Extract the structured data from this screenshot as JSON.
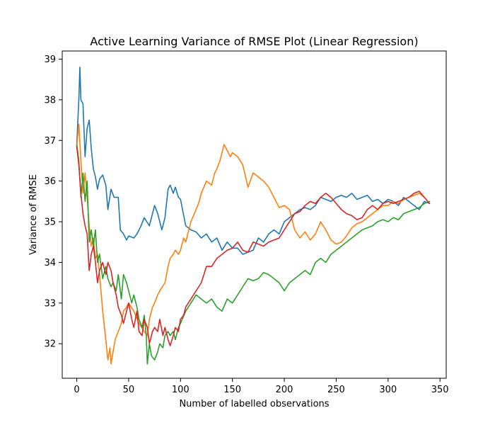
{
  "chart_data": {
    "type": "line",
    "title": "Active Learning Variance of RMSE Plot (Linear Regression)",
    "xlabel": "Number of labelled observations",
    "ylabel": "Variance of RMSE",
    "xlim": [
      -14,
      356
    ],
    "ylim": [
      31.15,
      39.2
    ],
    "xticks": [
      0,
      50,
      100,
      150,
      200,
      250,
      300,
      350
    ],
    "yticks": [
      32,
      33,
      34,
      35,
      36,
      37,
      38,
      39
    ],
    "grid": false,
    "legend": "none",
    "series": [
      {
        "color": "#1f77b4",
        "x": [
          0,
          2,
          3,
          4,
          6,
          8,
          10,
          12,
          14,
          16,
          18,
          20,
          22,
          25,
          28,
          30,
          33,
          36,
          40,
          42,
          45,
          48,
          50,
          55,
          58,
          62,
          65,
          70,
          75,
          78,
          82,
          85,
          88,
          90,
          93,
          95,
          98,
          100,
          105,
          110,
          115,
          120,
          125,
          130,
          135,
          140,
          145,
          150,
          155,
          160,
          165,
          170,
          175,
          180,
          185,
          190,
          195,
          200,
          205,
          210,
          215,
          220,
          225,
          230,
          235,
          240,
          245,
          250,
          255,
          260,
          265,
          270,
          275,
          280,
          285,
          290,
          295,
          300,
          305,
          310,
          315,
          320,
          325,
          330,
          335,
          340
        ],
        "y": [
          36.9,
          38.0,
          38.8,
          38.0,
          37.9,
          36.6,
          37.3,
          37.5,
          36.8,
          36.3,
          36.1,
          35.8,
          36.05,
          36.15,
          35.9,
          35.3,
          35.8,
          35.6,
          35.6,
          34.8,
          34.7,
          34.55,
          34.65,
          34.6,
          34.7,
          34.9,
          35.1,
          34.9,
          35.4,
          35.2,
          34.8,
          35.1,
          35.8,
          35.9,
          35.7,
          35.85,
          35.6,
          35.55,
          34.9,
          34.8,
          34.75,
          34.6,
          34.7,
          34.5,
          34.6,
          34.3,
          34.5,
          34.35,
          34.35,
          34.2,
          34.25,
          34.3,
          34.6,
          34.5,
          34.7,
          34.8,
          34.7,
          35.0,
          35.1,
          35.2,
          35.3,
          35.35,
          35.3,
          35.4,
          35.6,
          35.55,
          35.5,
          35.6,
          35.65,
          35.6,
          35.7,
          35.55,
          35.6,
          35.65,
          35.5,
          35.55,
          35.45,
          35.55,
          35.5,
          35.4,
          35.6,
          35.5,
          35.4,
          35.3,
          35.5,
          35.45
        ]
      },
      {
        "color": "#ff7f0e",
        "x": [
          0,
          2,
          4,
          6,
          8,
          10,
          12,
          14,
          16,
          18,
          20,
          22,
          25,
          28,
          30,
          32,
          33,
          35,
          37,
          40,
          43,
          45,
          48,
          50,
          55,
          60,
          65,
          68,
          70,
          73,
          75,
          78,
          80,
          85,
          88,
          90,
          93,
          95,
          98,
          100,
          103,
          105,
          110,
          115,
          118,
          120,
          125,
          130,
          133,
          135,
          138,
          140,
          142,
          145,
          148,
          150,
          155,
          160,
          165,
          170,
          175,
          180,
          185,
          190,
          195,
          200,
          205,
          210,
          215,
          220,
          225,
          230,
          235,
          240,
          245,
          250,
          255,
          260,
          265,
          270,
          275,
          280,
          285,
          290,
          295,
          300,
          305,
          310,
          315,
          320,
          325,
          330,
          335,
          340
        ],
        "y": [
          36.85,
          37.4,
          36.5,
          35.7,
          36.2,
          35.6,
          34.9,
          34.4,
          34.6,
          34.1,
          34.2,
          33.7,
          32.8,
          32.1,
          31.6,
          31.9,
          31.5,
          31.8,
          32.1,
          32.3,
          32.5,
          32.8,
          32.9,
          33.0,
          32.8,
          32.5,
          32.3,
          32.2,
          32.6,
          32.9,
          33.0,
          33.2,
          33.3,
          33.5,
          33.9,
          34.1,
          34.2,
          34.3,
          34.2,
          34.3,
          34.6,
          34.5,
          35.0,
          35.3,
          35.5,
          35.7,
          36.0,
          35.9,
          36.2,
          36.3,
          36.5,
          36.7,
          36.9,
          36.75,
          36.6,
          36.7,
          36.6,
          36.4,
          35.85,
          36.2,
          36.1,
          36.0,
          35.85,
          35.6,
          35.35,
          35.4,
          35.3,
          34.8,
          34.6,
          34.75,
          34.55,
          34.7,
          35.0,
          34.8,
          34.55,
          34.45,
          34.5,
          34.65,
          34.85,
          34.95,
          35.0,
          35.1,
          35.2,
          35.3,
          35.4,
          35.4,
          35.5,
          35.45,
          35.55,
          35.6,
          35.65,
          35.7,
          35.6,
          35.45
        ]
      },
      {
        "color": "#2ca02c",
        "x": [
          0,
          2,
          4,
          6,
          8,
          10,
          12,
          14,
          16,
          18,
          20,
          22,
          25,
          28,
          30,
          33,
          35,
          38,
          40,
          43,
          45,
          48,
          50,
          53,
          55,
          58,
          60,
          63,
          65,
          67,
          68,
          70,
          72,
          75,
          78,
          80,
          83,
          85,
          88,
          90,
          93,
          95,
          98,
          100,
          105,
          110,
          115,
          120,
          125,
          130,
          135,
          140,
          145,
          150,
          155,
          160,
          165,
          170,
          175,
          180,
          185,
          190,
          195,
          200,
          205,
          210,
          215,
          220,
          225,
          230,
          235,
          240,
          245,
          250,
          255,
          260,
          265,
          270,
          275,
          280,
          285,
          290,
          295,
          300,
          305,
          310,
          315,
          320,
          325,
          330,
          335,
          340
        ],
        "y": [
          36.9,
          36.5,
          35.6,
          36.2,
          35.5,
          36.0,
          34.5,
          34.8,
          34.4,
          34.8,
          34.0,
          34.2,
          33.6,
          33.9,
          33.6,
          33.4,
          33.5,
          33.3,
          33.7,
          33.1,
          33.7,
          33.5,
          33.3,
          33.0,
          33.2,
          32.9,
          32.6,
          32.4,
          32.7,
          32.2,
          31.5,
          32.0,
          31.7,
          31.6,
          31.8,
          32.0,
          31.9,
          32.2,
          32.3,
          32.2,
          32.3,
          32.1,
          32.4,
          32.5,
          32.8,
          33.0,
          33.2,
          33.1,
          33.0,
          33.1,
          32.9,
          32.8,
          33.1,
          33.0,
          33.2,
          33.4,
          33.6,
          33.55,
          33.6,
          33.75,
          33.7,
          33.6,
          33.5,
          33.3,
          33.5,
          33.6,
          33.7,
          33.8,
          33.7,
          34.0,
          34.1,
          34.0,
          34.2,
          34.3,
          34.4,
          34.5,
          34.6,
          34.7,
          34.8,
          34.85,
          34.9,
          35.0,
          35.05,
          35.0,
          35.1,
          35.05,
          35.2,
          35.25,
          35.3,
          35.35,
          35.45,
          35.5
        ]
      },
      {
        "color": "#d62728",
        "x": [
          0,
          2,
          4,
          6,
          8,
          10,
          12,
          14,
          16,
          18,
          20,
          22,
          25,
          28,
          30,
          33,
          35,
          38,
          40,
          43,
          45,
          48,
          50,
          53,
          55,
          58,
          60,
          63,
          65,
          68,
          70,
          73,
          75,
          78,
          80,
          83,
          85,
          88,
          90,
          93,
          95,
          98,
          100,
          103,
          105,
          110,
          115,
          120,
          125,
          130,
          135,
          140,
          145,
          150,
          155,
          160,
          165,
          170,
          175,
          180,
          185,
          190,
          195,
          200,
          205,
          210,
          215,
          220,
          225,
          230,
          235,
          240,
          245,
          250,
          255,
          260,
          265,
          270,
          275,
          280,
          285,
          290,
          295,
          300,
          305,
          310,
          315,
          320,
          325,
          330,
          335,
          340
        ],
        "y": [
          36.85,
          36.4,
          35.7,
          35.2,
          34.9,
          34.7,
          33.8,
          34.2,
          34.4,
          34.0,
          33.5,
          33.8,
          34.0,
          33.7,
          34.0,
          33.8,
          33.5,
          33.2,
          32.9,
          32.7,
          32.5,
          32.8,
          33.0,
          32.6,
          32.4,
          32.8,
          32.3,
          32.2,
          32.6,
          32.4,
          32.0,
          32.3,
          32.4,
          32.3,
          32.6,
          32.2,
          32.4,
          32.1,
          31.95,
          32.2,
          32.4,
          32.3,
          32.6,
          32.7,
          32.9,
          33.1,
          33.3,
          33.5,
          33.9,
          33.9,
          34.1,
          34.2,
          34.3,
          34.35,
          34.5,
          34.3,
          34.25,
          34.5,
          34.45,
          34.4,
          34.5,
          34.55,
          34.6,
          34.8,
          35.0,
          35.2,
          35.25,
          35.4,
          35.5,
          35.45,
          35.6,
          35.7,
          35.6,
          35.45,
          35.3,
          35.2,
          35.15,
          35.05,
          35.1,
          35.3,
          35.4,
          35.3,
          35.45,
          35.5,
          35.45,
          35.5,
          35.55,
          35.6,
          35.7,
          35.75,
          35.6,
          35.45
        ]
      }
    ]
  }
}
